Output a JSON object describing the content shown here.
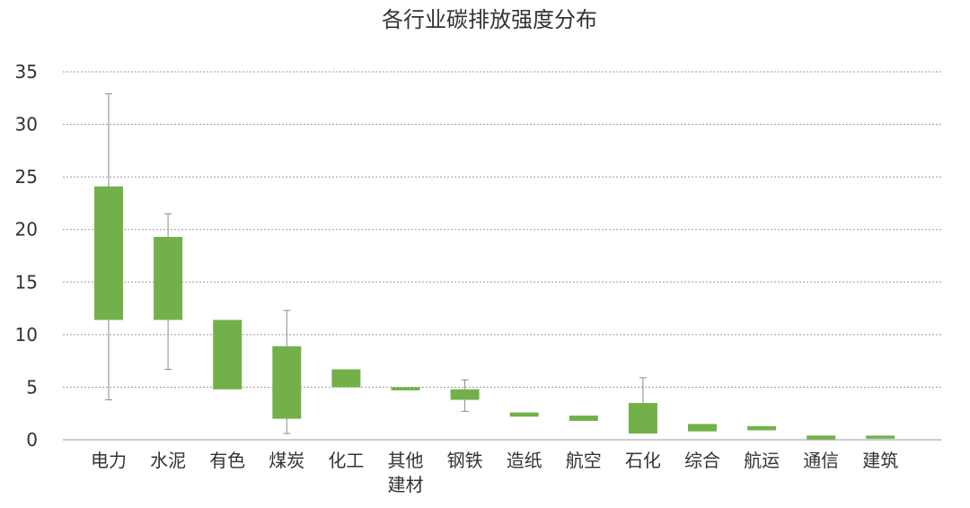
{
  "chart_data": {
    "type": "box",
    "title": "各行业碳排放强度分布",
    "xlabel": "",
    "ylabel": "",
    "ylim": [
      0,
      35
    ],
    "yticks": [
      "0",
      "5",
      "10",
      "15",
      "20",
      "25",
      "30",
      "35"
    ],
    "grid": true,
    "legend": "none",
    "bar_color": "#72b149",
    "categories": [
      "电力",
      "水泥",
      "有色",
      "煤炭",
      "化工",
      "其他建材",
      "钢铁",
      "造纸",
      "航空",
      "石化",
      "综合",
      "航运",
      "通信",
      "建筑"
    ],
    "category_lines": [
      [
        "电力"
      ],
      [
        "水泥"
      ],
      [
        "有色"
      ],
      [
        "煤炭"
      ],
      [
        "化工"
      ],
      [
        "其他",
        "建材"
      ],
      [
        "钢铁"
      ],
      [
        "造纸"
      ],
      [
        "航空"
      ],
      [
        "石化"
      ],
      [
        "综合"
      ],
      [
        "航运"
      ],
      [
        "通信"
      ],
      [
        "建筑"
      ]
    ],
    "series": [
      {
        "low": [
          3.8,
          6.7,
          4.8,
          0.6,
          5.0,
          4.7,
          2.7,
          2.2,
          1.8,
          0.6,
          0.8,
          0.9,
          0.05,
          0.1
        ],
        "q1": [
          11.4,
          11.4,
          4.8,
          2.0,
          5.0,
          4.7,
          3.8,
          2.2,
          1.8,
          0.6,
          0.8,
          0.9,
          0.05,
          0.1
        ],
        "q3": [
          24.1,
          19.3,
          11.4,
          8.9,
          6.7,
          5.0,
          4.8,
          2.6,
          2.3,
          3.5,
          1.5,
          1.3,
          0.4,
          0.4
        ],
        "high": [
          32.9,
          21.5,
          11.4,
          12.3,
          6.7,
          5.0,
          5.7,
          2.6,
          2.3,
          5.9,
          1.5,
          1.3,
          0.4,
          0.4
        ]
      }
    ]
  }
}
